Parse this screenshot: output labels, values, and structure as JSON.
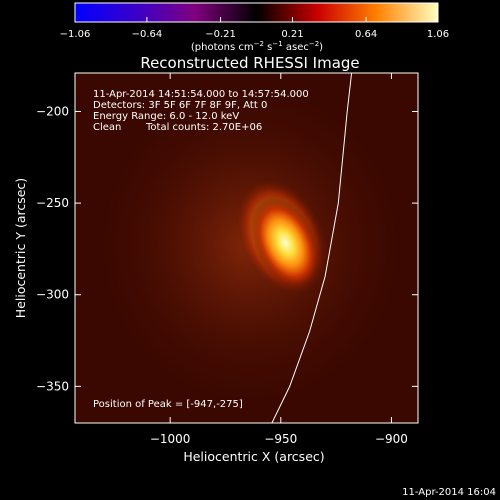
{
  "chart_data": {
    "type": "heatmap",
    "title": "Reconstructed RHESSI Image",
    "xlabel": "Heliocentric X (arcsec)",
    "ylabel": "Heliocentric Y (arcsec)",
    "xlim": [
      -1043,
      -888
    ],
    "ylim": [
      -370,
      -179
    ],
    "x_ticks": [
      -1000,
      -950,
      -900
    ],
    "x_tick_labels": [
      "−1000",
      "−950",
      "−900"
    ],
    "y_ticks": [
      -200,
      -250,
      -300,
      -350
    ],
    "y_tick_labels": [
      "−200",
      "−250",
      "−300",
      "−350"
    ],
    "grid": false,
    "colorbar": {
      "min": -1.06,
      "max": 1.06,
      "ticks": [
        -1.06,
        -0.64,
        -0.21,
        0.21,
        0.64,
        1.06
      ],
      "tick_labels": [
        "−1.06",
        "−0.64",
        "−0.21",
        "0.21",
        "0.64",
        "1.06"
      ],
      "unit_label": "(photons cm",
      "unit_exp1": "−2",
      "unit_mid": " s",
      "unit_exp2": "−1",
      "unit_mid2": " asec",
      "unit_exp3": "−2",
      "unit_end": ")",
      "colors": [
        "#0000ff",
        "#3a00c8",
        "#800080",
        "#000000",
        "#cc0000",
        "#ff8000",
        "#ffffc0"
      ]
    },
    "source": {
      "peak_x": -947,
      "peak_y": -275,
      "background_level": 0.3
    },
    "limb_curve": [
      {
        "x": -918,
        "y": -179
      },
      {
        "x": -920,
        "y": -200
      },
      {
        "x": -924,
        "y": -250
      },
      {
        "x": -930,
        "y": -290
      },
      {
        "x": -937,
        "y": -320
      },
      {
        "x": -946,
        "y": -350
      },
      {
        "x": -954,
        "y": -370
      }
    ],
    "annotations": {
      "time_range": "11-Apr-2014 14:51:54.000 to 14:57:54.000",
      "detectors": "Detectors: 3F 5F 6F 7F 8F 9F, Att 0",
      "energy_range": "Energy Range: 6.0 - 12.0 keV",
      "clean_label": "Clean",
      "total_counts": "Total counts: 2.70E+06",
      "peak_position": "Position of Peak = [-947,-275]"
    },
    "timestamp": "11-Apr-2014 16:04"
  }
}
